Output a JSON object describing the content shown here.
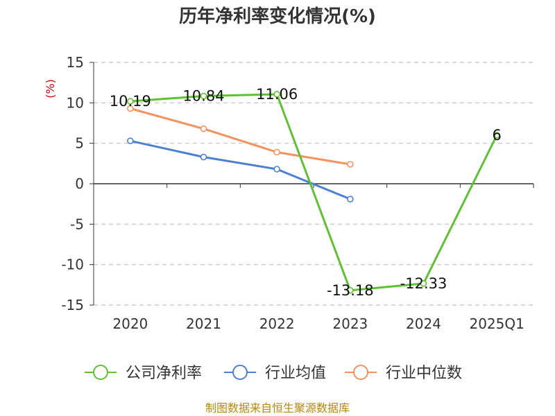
{
  "chart_data": {
    "type": "line",
    "title": "历年净利率变化情况(%)",
    "ylabel": "(%)",
    "xlabel": "",
    "categories": [
      "2020",
      "2021",
      "2022",
      "2023",
      "2024",
      "2025Q1"
    ],
    "ylim": [
      -15,
      15
    ],
    "yticks": [
      "15",
      "10",
      "5",
      "0",
      "-5",
      "-10",
      "-15"
    ],
    "grid": "horizontal-dashed",
    "legend_position": "bottom",
    "series": [
      {
        "name": "公司净利率",
        "color": "#5cc22f",
        "values": [
          10.19,
          10.84,
          11.06,
          -13.18,
          -12.33,
          6
        ],
        "labels": [
          "10.19",
          "10.84",
          "11.06",
          "-13.18",
          "-12.33",
          "6"
        ]
      },
      {
        "name": "行业均值",
        "color": "#4a7fd6",
        "values": [
          5.3,
          3.3,
          1.8,
          -1.9,
          null,
          null
        ],
        "labels": []
      },
      {
        "name": "行业中位数",
        "color": "#f5925c",
        "values": [
          9.3,
          6.8,
          3.9,
          2.4,
          null,
          null
        ],
        "labels": []
      }
    ]
  },
  "source": "制图数据来自恒生聚源数据库"
}
